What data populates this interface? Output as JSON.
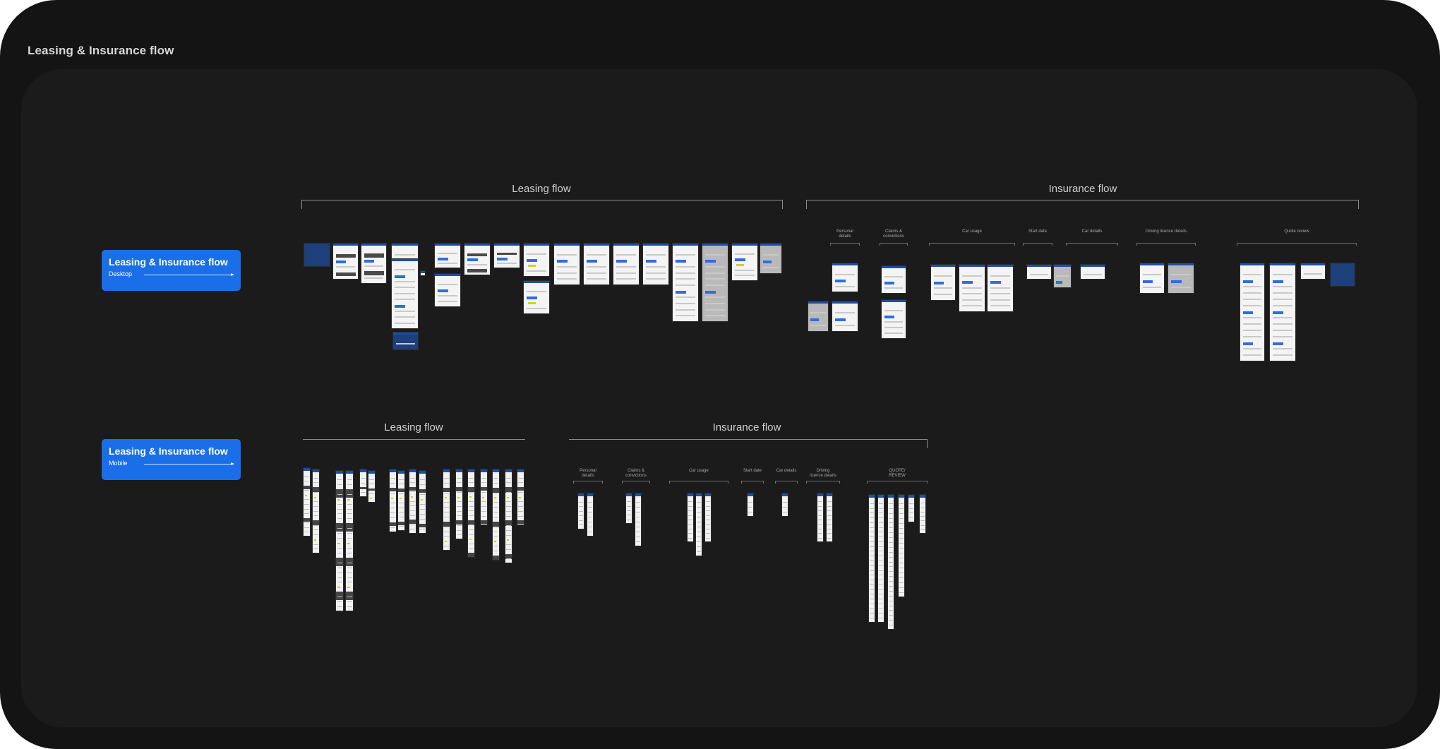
{
  "page": {
    "title": "Leasing & Insurance flow",
    "background": "#141414",
    "canvas_color": "#1b1b1b",
    "accent": "#1a6fe8"
  },
  "desktop": {
    "badge": {
      "title": "Leasing & Insurance flow",
      "subtitle": "Desktop"
    },
    "leasing_heading": "Leasing flow",
    "insurance_heading": "Insurance flow",
    "insurance_steps": [
      "Personal\ndetails",
      "Claims &\nconvictions",
      "Car usage",
      "Start date",
      "Car details",
      "Driving licence details",
      "Quote review"
    ]
  },
  "mobile": {
    "badge": {
      "title": "Leasing & Insurance flow",
      "subtitle": "Mobile"
    },
    "leasing_heading": "Leasing flow",
    "insurance_heading": "Insurance flow",
    "insurance_steps": [
      "Personal\ndetails",
      "Claims &\nconvictions",
      "Car usage",
      "Start date",
      "Car details",
      "Driving\nlicence details",
      "QUOTE/\nREVIEW"
    ]
  }
}
